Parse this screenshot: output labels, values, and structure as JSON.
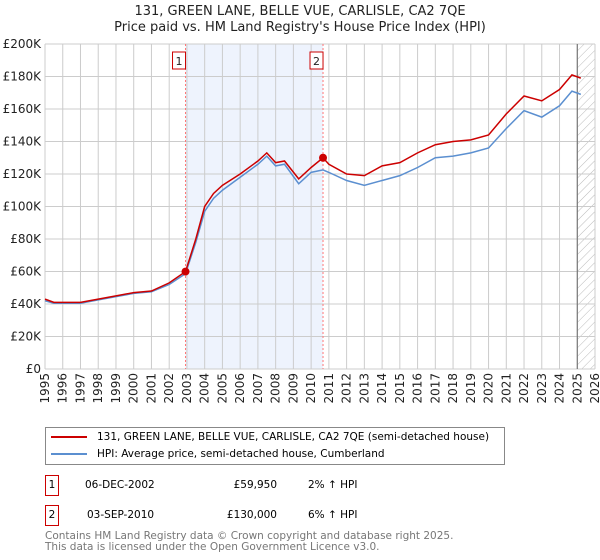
{
  "title": "131, GREEN LANE, BELLE VUE, CARLISLE, CA2 7QE",
  "subtitle": "Price paid vs. HM Land Registry's House Price Index (HPI)",
  "chart_data": {
    "type": "line",
    "xlim": [
      1995,
      2026
    ],
    "ylim": [
      0,
      200000
    ],
    "yticks": [
      "£0",
      "£20K",
      "£40K",
      "£60K",
      "£80K",
      "£100K",
      "£120K",
      "£140K",
      "£160K",
      "£180K",
      "£200K"
    ],
    "xticks": [
      "1995",
      "1996",
      "1997",
      "1998",
      "1999",
      "2000",
      "2001",
      "2002",
      "2003",
      "2004",
      "2005",
      "2006",
      "2007",
      "2008",
      "2009",
      "2010",
      "2011",
      "2012",
      "2013",
      "2014",
      "2015",
      "2016",
      "2017",
      "2018",
      "2019",
      "2020",
      "2021",
      "2022",
      "2023",
      "2024",
      "2025",
      "2026"
    ],
    "series": [
      {
        "name": "131, GREEN LANE, BELLE VUE, CARLISLE, CA2 7QE (semi-detached house)",
        "color": "#cc0000",
        "x": [
          1995,
          1995.5,
          1996,
          1997,
          1998,
          1999,
          2000,
          2001,
          2002,
          2002.92,
          2003.5,
          2004,
          2004.5,
          2005,
          2006,
          2007,
          2007.5,
          2008,
          2008.5,
          2009.3,
          2010,
          2010.67,
          2011,
          2012,
          2013,
          2014,
          2015,
          2016,
          2017,
          2018,
          2019,
          2020,
          2021,
          2022,
          2023,
          2024,
          2024.7,
          2025.2
        ],
        "y": [
          43000,
          41000,
          41000,
          41000,
          43000,
          45000,
          47000,
          48000,
          53000,
          59950,
          80000,
          100000,
          108000,
          113000,
          120000,
          128000,
          133000,
          127000,
          128000,
          117000,
          124000,
          130000,
          126000,
          120000,
          119000,
          125000,
          127000,
          133000,
          138000,
          140000,
          141000,
          144000,
          157000,
          168000,
          165000,
          172000,
          181000,
          179000
        ]
      },
      {
        "name": "HPI: Average price, semi-detached house, Cumberland",
        "color": "#5b8fd0",
        "x": [
          1995,
          1995.5,
          1996,
          1997,
          1998,
          1999,
          2000,
          2001,
          2002,
          2002.92,
          2003.5,
          2004,
          2004.5,
          2005,
          2006,
          2007,
          2007.5,
          2008,
          2008.5,
          2009.3,
          2010,
          2010.67,
          2011,
          2012,
          2013,
          2014,
          2015,
          2016,
          2017,
          2018,
          2019,
          2020,
          2021,
          2022,
          2023,
          2024,
          2024.7,
          2025.2
        ],
        "y": [
          42000,
          40500,
          40500,
          40500,
          42500,
          44500,
          46500,
          47500,
          52000,
          58700,
          78000,
          97000,
          105000,
          110000,
          118000,
          126000,
          131000,
          125000,
          126000,
          114000,
          121000,
          122500,
          121000,
          116000,
          113000,
          116000,
          119000,
          124000,
          130000,
          131000,
          133000,
          136000,
          148000,
          159000,
          155000,
          162000,
          171000,
          169000
        ]
      }
    ],
    "annotations": [
      {
        "label": "1",
        "x": 2002.92,
        "y": 59950
      },
      {
        "label": "2",
        "x": 2010.67,
        "y": 130000
      }
    ],
    "shaded_range": [
      2002.92,
      2010.67
    ],
    "forecast_hatch_from": 2025.0
  },
  "legend": [
    "131, GREEN LANE, BELLE VUE, CARLISLE, CA2 7QE (semi-detached house)",
    "HPI: Average price, semi-detached house, Cumberland"
  ],
  "transactions": [
    {
      "num": "1",
      "date": "06-DEC-2002",
      "price": "£59,950",
      "hpi": "2% ↑ HPI"
    },
    {
      "num": "2",
      "date": "03-SEP-2010",
      "price": "£130,000",
      "hpi": "6% ↑ HPI"
    }
  ],
  "footer": [
    "Contains HM Land Registry data © Crown copyright and database right 2025.",
    "This data is licensed under the Open Government Licence v3.0."
  ]
}
